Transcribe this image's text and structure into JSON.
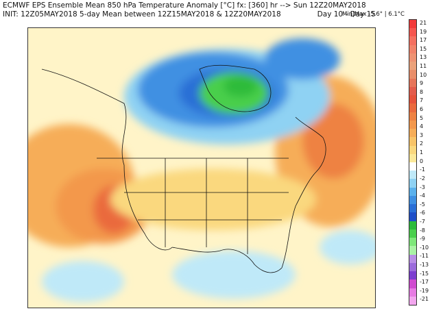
{
  "header": {
    "line1": "ECMWF EPS Ensemble Mean 850 hPa Temperature Anomaly [°C] fx: [360] hr --> Sun 12Z20MAY2018",
    "line2": "INIT: 12Z05MAY2018 5-day Mean between 12Z15MAY2018 & 12Z20MAY2018",
    "days": "Day 10 - Day 15",
    "minmax": "Min|Max -5.6° | 6.1°C"
  },
  "colorbar": {
    "labels": [
      "21",
      "19",
      "17",
      "15",
      "13",
      "11",
      "10",
      "9",
      "8",
      "7",
      "6",
      "5",
      "4",
      "3",
      "2",
      "1",
      "0",
      "-1",
      "-2",
      "-3",
      "-4",
      "-5",
      "-6",
      "-7",
      "-8",
      "-9",
      "-10",
      "-11",
      "-13",
      "-15",
      "-17",
      "-19",
      "-21"
    ],
    "colors": [
      "#f23a3a",
      "#f5564f",
      "#f47060",
      "#f1836a",
      "#ee9373",
      "#eba27b",
      "#e98e6a",
      "#e6755a",
      "#e35c4c",
      "#e6533c",
      "#ea6a3e",
      "#ee8243",
      "#f3984c",
      "#f6ad58",
      "#f8c468",
      "#fad87e",
      "#fce99a",
      "#ffffff",
      "#bfe9f8",
      "#8fd2f3",
      "#5bb1ec",
      "#3f90e2",
      "#2a6fd6",
      "#1f4fc8",
      "#2dbb3b",
      "#49cf4c",
      "#7ee77a",
      "#aaf2a5",
      "#b98ee6",
      "#9b6bdc",
      "#7c3fd0",
      "#d04bd0",
      "#e77be3",
      "#f2a6ee"
    ]
  },
  "map": {
    "anomaly_blobs": [
      {
        "label": "canada-cold",
        "color": "#5bb1ec"
      },
      {
        "label": "hudson-core",
        "color": "#49cf4c"
      },
      {
        "label": "west-coast-warm",
        "color": "#ea6a3e"
      },
      {
        "label": "atlantic-warm",
        "color": "#ee8243"
      }
    ]
  }
}
